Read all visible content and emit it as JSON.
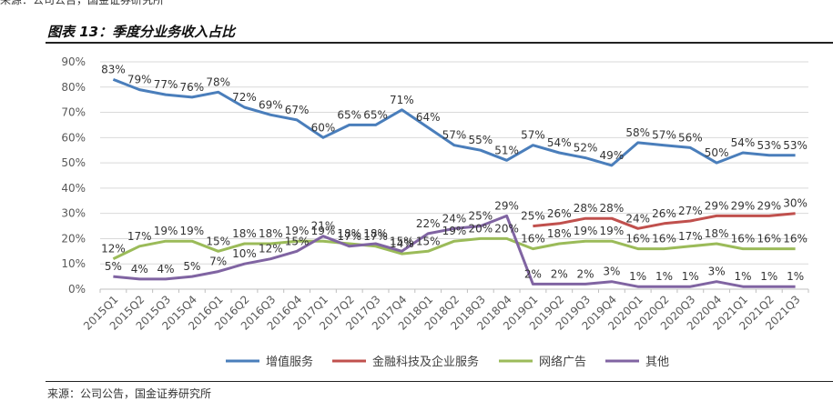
{
  "header": {
    "top_source": "来源：公司公告，国金证券研究所",
    "title": "图表 13：季度分业务收入占比",
    "bottom_source": "来源：公司公告，国金证券研究所"
  },
  "chart_data": {
    "type": "line",
    "title": "图表 13：季度分业务收入占比",
    "xlabel": "",
    "ylabel": "",
    "ylim": [
      0,
      90
    ],
    "yticks": [
      "0%",
      "10%",
      "20%",
      "30%",
      "40%",
      "50%",
      "60%",
      "70%",
      "80%",
      "90%"
    ],
    "grid": true,
    "legend_position": "bottom",
    "categories": [
      "2015Q1",
      "2015Q2",
      "2015Q3",
      "2015Q4",
      "2016Q1",
      "2016Q2",
      "2016Q3",
      "2016Q4",
      "2017Q1",
      "2017Q2",
      "2017Q3",
      "2017Q4",
      "2018Q1",
      "2018Q2",
      "2018Q3",
      "2018Q4",
      "2019Q1",
      "2019Q2",
      "2019Q3",
      "2019Q4",
      "2020Q1",
      "2020Q2",
      "2020Q3",
      "2020Q4",
      "2021Q1",
      "2021Q2",
      "2021Q3"
    ],
    "series": [
      {
        "name": "增值服务",
        "color": "#4a7ebb",
        "values": [
          83,
          79,
          77,
          76,
          78,
          72,
          69,
          67,
          60,
          65,
          65,
          71,
          64,
          57,
          55,
          51,
          57,
          54,
          52,
          49,
          58,
          57,
          56,
          50,
          54,
          53,
          53
        ]
      },
      {
        "name": "金融科技及企业服务",
        "color": "#c0504d",
        "values": [
          null,
          null,
          null,
          null,
          null,
          null,
          null,
          null,
          null,
          null,
          null,
          null,
          null,
          null,
          null,
          null,
          25,
          26,
          28,
          28,
          24,
          26,
          27,
          29,
          29,
          29,
          30
        ]
      },
      {
        "name": "网络广告",
        "color": "#9bbb59",
        "values": [
          12,
          17,
          19,
          19,
          15,
          18,
          18,
          19,
          19,
          18,
          17,
          14,
          15,
          19,
          20,
          20,
          16,
          18,
          19,
          19,
          16,
          16,
          17,
          18,
          16,
          16,
          16
        ]
      },
      {
        "name": "其他",
        "color": "#8064a2",
        "values": [
          5,
          4,
          4,
          5,
          7,
          10,
          12,
          15,
          21,
          17,
          18,
          15,
          22,
          24,
          25,
          29,
          2,
          2,
          2,
          3,
          1,
          1,
          1,
          3,
          1,
          1,
          1
        ]
      }
    ],
    "label_suffix": "%"
  }
}
